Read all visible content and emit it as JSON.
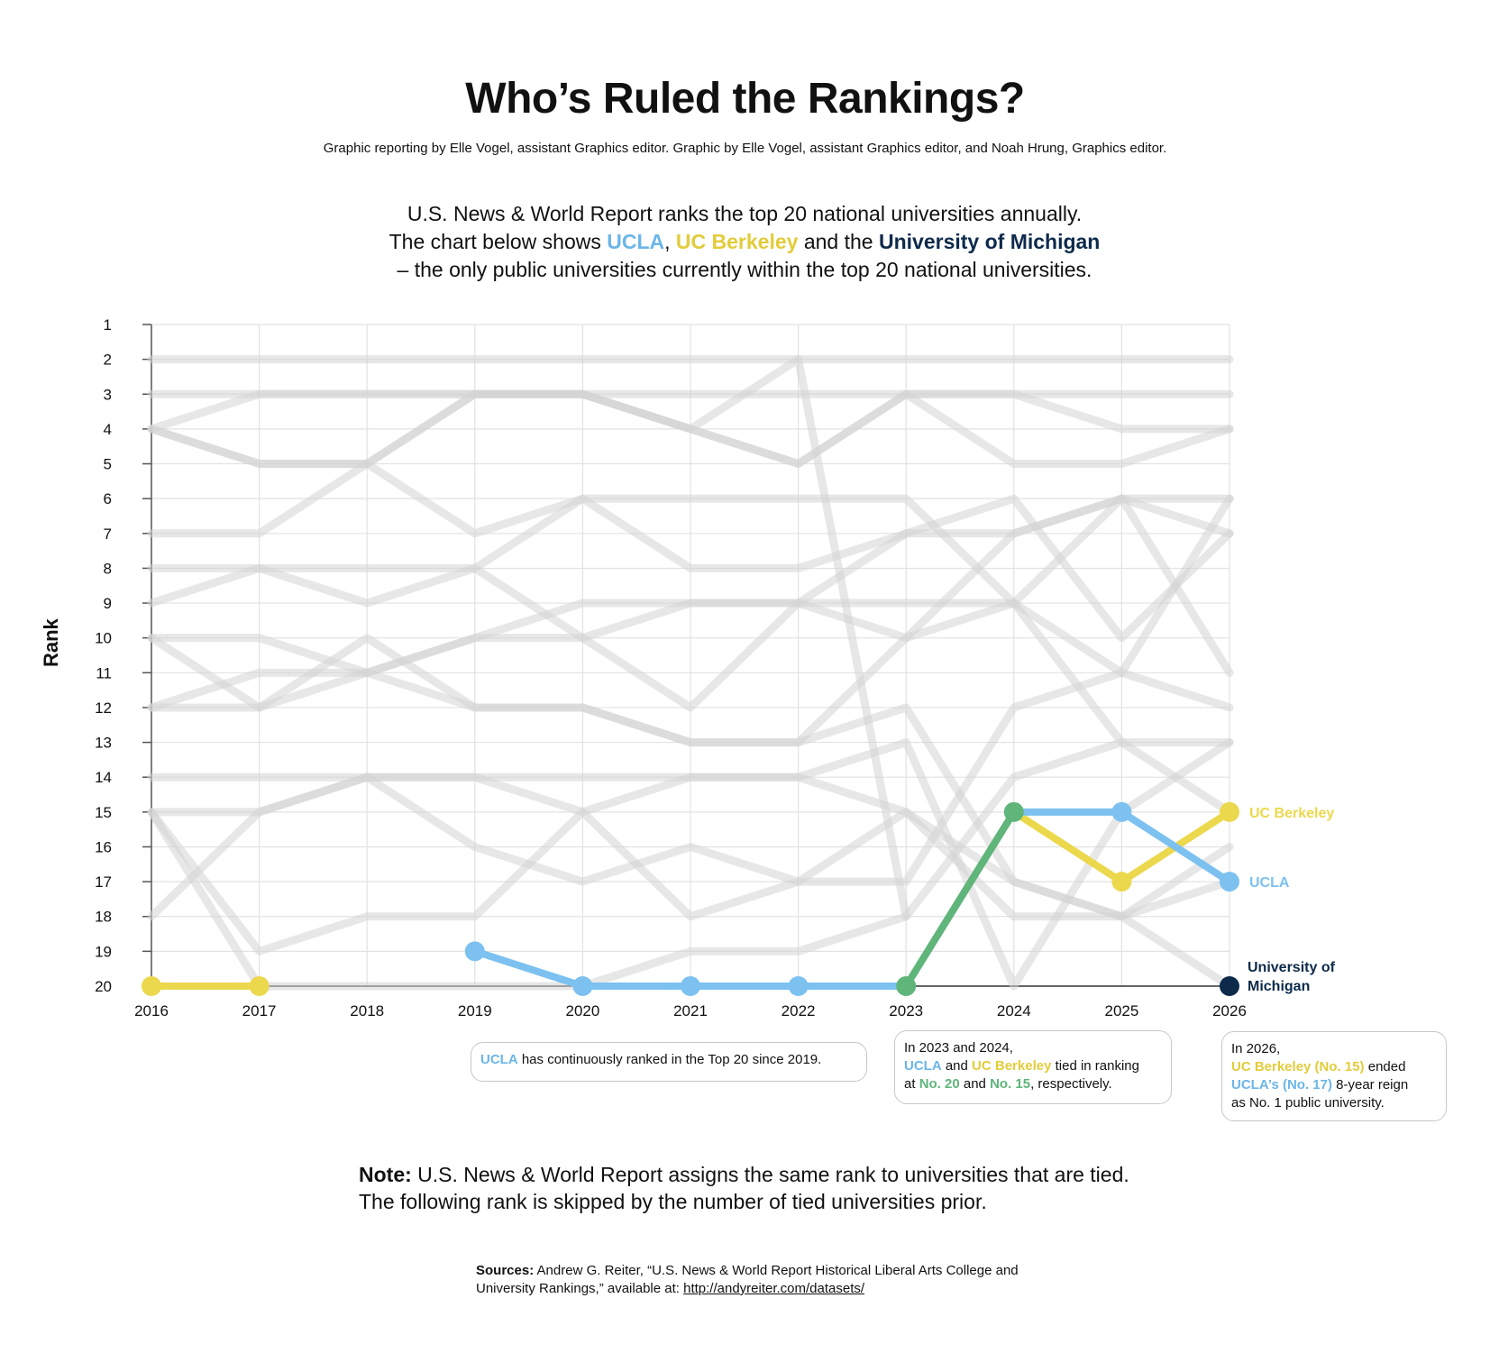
{
  "header": {
    "title": "Who’s Ruled the Rankings?",
    "byline": "Graphic reporting by Elle Vogel, assistant Graphics editor. Graphic by Elle Vogel, assistant Graphics editor, and Noah Hrung, Graphics editor."
  },
  "intro": {
    "line1": "U.S. News & World Report ranks the top 20 national universities annually.",
    "line2_prefix": "The chart below shows ",
    "ucla": "UCLA",
    "comma": ", ",
    "berkeley": "UC Berkeley",
    "and_the": " and the ",
    "michigan": "University of Michigan",
    "line3": "– the only public universities currently within the top 20 national universities."
  },
  "colors": {
    "ucla": "#7cc1f0",
    "berkeley": "#ecd84c",
    "michigan": "#0d2a4b",
    "tie": "#5fb57a",
    "background_lines": "#d4d4d4"
  },
  "chart_data": {
    "type": "line",
    "ylabel": "Rank",
    "x": [
      2016,
      2017,
      2018,
      2019,
      2020,
      2021,
      2022,
      2023,
      2024,
      2025,
      2026
    ],
    "y_ticks": [
      1,
      2,
      3,
      4,
      5,
      6,
      7,
      8,
      9,
      10,
      11,
      12,
      13,
      14,
      15,
      16,
      17,
      18,
      19,
      20
    ],
    "ylim": [
      1,
      20
    ],
    "y_reversed": true,
    "grid": true,
    "series": [
      {
        "name": "UCLA",
        "values": [
          null,
          null,
          null,
          19,
          20,
          20,
          20,
          20,
          15,
          15,
          17
        ]
      },
      {
        "name": "UC Berkeley",
        "values": [
          20,
          20,
          null,
          null,
          null,
          null,
          null,
          20,
          15,
          17,
          15
        ]
      },
      {
        "name": "University of Michigan",
        "values": [
          null,
          null,
          null,
          null,
          null,
          null,
          null,
          null,
          null,
          null,
          20
        ]
      }
    ],
    "background_series": [
      [
        2,
        2,
        2,
        2,
        2,
        2,
        2,
        2,
        2,
        2,
        2
      ],
      [
        3,
        3,
        3,
        3,
        3,
        3,
        3,
        3,
        3,
        3,
        3
      ],
      [
        4,
        3,
        3,
        3,
        3,
        4,
        2,
        18,
        null,
        null,
        null
      ],
      [
        4,
        5,
        5,
        3,
        3,
        4,
        5,
        3,
        3,
        4,
        4
      ],
      [
        4,
        5,
        5,
        3,
        3,
        4,
        5,
        3,
        5,
        5,
        4
      ],
      [
        7,
        7,
        5,
        7,
        6,
        6,
        6,
        6,
        9,
        13,
        13
      ],
      [
        8,
        8,
        8,
        8,
        10,
        12,
        9,
        7,
        6,
        10,
        7
      ],
      [
        9,
        8,
        9,
        8,
        6,
        8,
        8,
        7,
        7,
        6,
        7
      ],
      [
        10,
        10,
        11,
        10,
        9,
        9,
        9,
        10,
        9,
        6,
        11
      ],
      [
        10,
        12,
        10,
        12,
        12,
        13,
        13,
        10,
        7,
        6,
        6
      ],
      [
        12,
        11,
        11,
        10,
        10,
        9,
        9,
        9,
        9,
        11,
        12
      ],
      [
        12,
        12,
        11,
        12,
        12,
        13,
        13,
        12,
        17,
        18,
        16
      ],
      [
        14,
        14,
        14,
        14,
        14,
        14,
        14,
        13,
        20,
        15,
        13
      ],
      [
        15,
        15,
        14,
        16,
        17,
        16,
        17,
        17,
        12,
        11,
        6
      ],
      [
        15,
        19,
        18,
        18,
        15,
        18,
        17,
        15,
        18,
        18,
        17
      ],
      [
        18,
        15,
        14,
        14,
        15,
        14,
        14,
        15,
        17,
        18,
        20
      ],
      [
        15,
        20,
        20,
        20,
        20,
        19,
        19,
        18,
        14,
        13,
        15
      ]
    ],
    "end_labels": {
      "berkeley": "UC Berkeley",
      "ucla": "UCLA",
      "michigan_1": "University of",
      "michigan_2": "Michigan"
    }
  },
  "callouts": {
    "c1": {
      "ucla": "UCLA",
      "text": " has continuously ranked in the Top 20 since 2019."
    },
    "c2": {
      "l1": "In 2023 and 2024,",
      "ucla": "UCLA",
      "and1": " and ",
      "berkeley": "UC Berkeley",
      "tied": " tied in ranking",
      "at": "at ",
      "n20": "No. 20",
      "and2": " and ",
      "n15": "No. 15",
      "resp": ", respectively."
    },
    "c3": {
      "l1": "In 2026,",
      "berkeley": "UC Berkeley (No. 15)",
      "ended": " ended",
      "ucla": "UCLA’s (No. 17)",
      "reign": "  8-year reign",
      "l4": "as No. 1 public university."
    }
  },
  "note": {
    "bold": "Note:",
    "text": " U.S. News & World Report assigns the same rank to universities that are tied. The following rank is skipped by the number of tied universities prior."
  },
  "sources": {
    "bold": "Sources:",
    "text": " Andrew G. Reiter, “U.S. News & World Report Historical Liberal Arts College and University Rankings,” available at: ",
    "link": "http://andyreiter.com/datasets/"
  }
}
